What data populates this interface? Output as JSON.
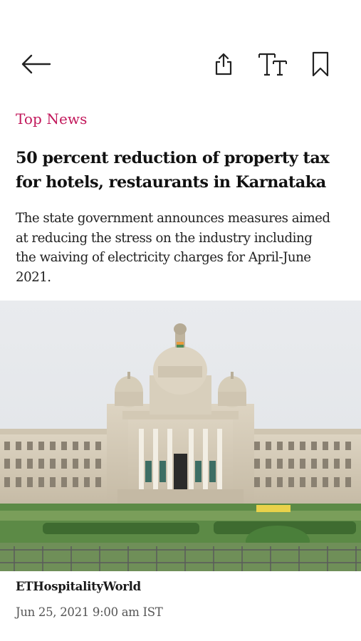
{
  "toolbar": {
    "back_icon": "arrow-left-icon",
    "share_icon": "share-upload-icon",
    "text_size_icon": "text-size-icon",
    "bookmark_icon": "bookmark-icon"
  },
  "article": {
    "category": "Top News",
    "headline": "50 percent reduction of property tax\nfor hotels, restaurants in Karnataka",
    "summary": "The state government announces measures aimed\nat reducing the stress on the industry including\nthe waiving of electricity charges for April-June\n2021.",
    "source": "ETHospitalityWorld",
    "timestamp": "Jun 25, 2021 9:00 am IST"
  },
  "colors": {
    "category": "#c2185b",
    "text": "#111111",
    "background": "#ffffff"
  }
}
